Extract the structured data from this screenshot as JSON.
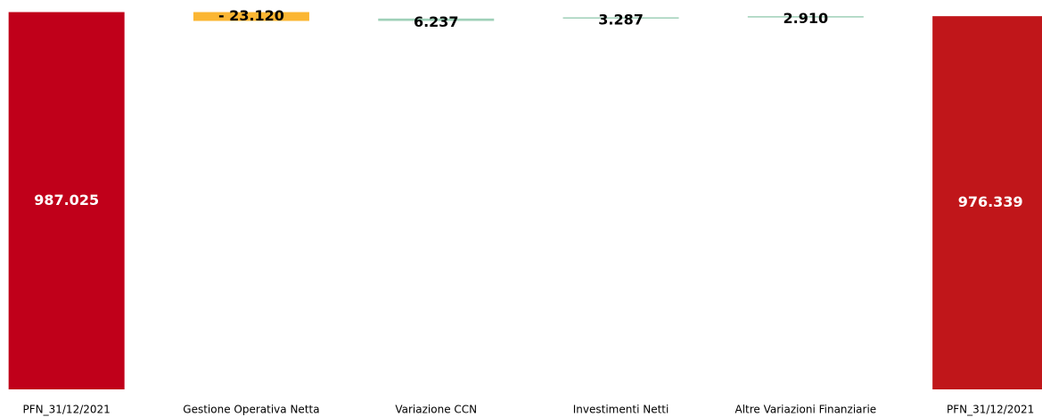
{
  "chart_data": {
    "type": "waterfall",
    "categories": [
      "PFN_31/12/2021",
      "Gestione Operativa Netta",
      "Variazione CCN",
      "Investimenti Netti",
      "Altre Variazioni Finanziarie",
      "PFN_31/12/2021"
    ],
    "values": [
      987025,
      -23120,
      6237,
      3287,
      2910,
      976339
    ],
    "value_labels": [
      "987.025",
      "- 23.120",
      "6.237",
      "3.287",
      "2.910",
      "976.339"
    ],
    "colors": [
      "#c0001a",
      "#fbb633",
      "#9fd0b8",
      "#9fd0b8",
      "#9fd0b8",
      "#c0161a"
    ],
    "ylim": [
      0,
      1000000
    ]
  }
}
